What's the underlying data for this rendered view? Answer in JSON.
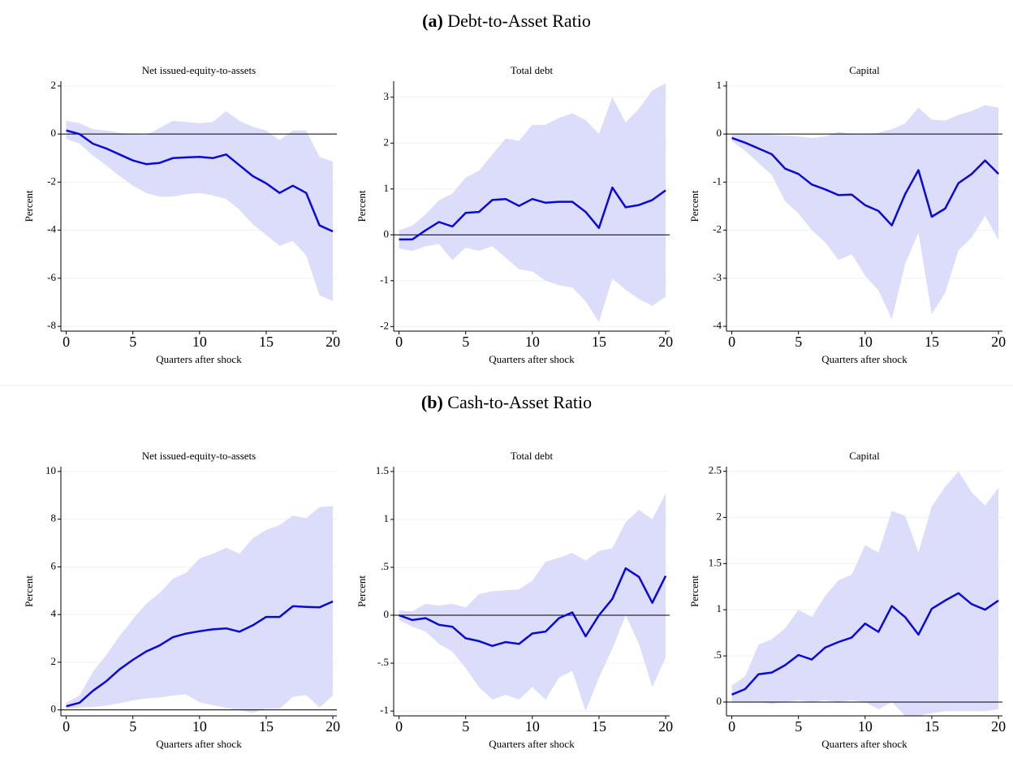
{
  "panels": [
    {
      "label": "(a)",
      "title": "Debt-to-Asset Ratio"
    },
    {
      "label": "(b)",
      "title": "Cash-to-Asset Ratio"
    }
  ],
  "chart_data": [
    {
      "type": "line",
      "title": "Net issued-equity-to-assets",
      "xlabel": "Quarters after shock",
      "ylabel": "Percent",
      "grid": true,
      "reference_line": 0,
      "x": [
        0,
        1,
        2,
        3,
        4,
        5,
        6,
        7,
        8,
        9,
        10,
        11,
        12,
        13,
        14,
        15,
        16,
        17,
        18,
        19,
        20
      ],
      "xlim": [
        -0.4,
        20.3
      ],
      "xticks": [
        0,
        5,
        10,
        15,
        20
      ],
      "ylim": [
        -8.2,
        2.2
      ],
      "yticks": [
        -8,
        -6,
        -4,
        -2,
        0,
        2
      ],
      "series": [
        {
          "color": "#0a0ad8",
          "values": [
            0.15,
            0,
            -0.4,
            -0.6,
            -0.85,
            -1.1,
            -1.25,
            -1.2,
            -1.0,
            -0.97,
            -0.95,
            -1.0,
            -0.85,
            -1.3,
            -1.75,
            -2.05,
            -2.45,
            -2.15,
            -2.45,
            -3.8,
            -4.05
          ]
        }
      ],
      "band": {
        "color": "#dcdcfb",
        "upper": [
          0.55,
          0.45,
          0.2,
          0.15,
          0.05,
          0.0,
          -0.05,
          0.25,
          0.55,
          0.5,
          0.45,
          0.5,
          0.95,
          0.55,
          0.3,
          0.15,
          -0.25,
          0.15,
          0.15,
          -0.95,
          -1.15
        ],
        "lower": [
          -0.2,
          -0.4,
          -0.9,
          -1.3,
          -1.75,
          -2.15,
          -2.45,
          -2.6,
          -2.6,
          -2.5,
          -2.45,
          -2.55,
          -2.7,
          -3.15,
          -3.75,
          -4.2,
          -4.65,
          -4.45,
          -5.05,
          -6.7,
          -6.95
        ]
      }
    },
    {
      "type": "line",
      "title": "Total debt",
      "xlabel": "Quarters after shock",
      "ylabel": "Percent",
      "grid": true,
      "reference_line": 0,
      "x": [
        0,
        1,
        2,
        3,
        4,
        5,
        6,
        7,
        8,
        9,
        10,
        11,
        12,
        13,
        14,
        15,
        16,
        17,
        18,
        19,
        20
      ],
      "xlim": [
        -0.4,
        20.3
      ],
      "xticks": [
        0,
        5,
        10,
        15,
        20
      ],
      "ylim": [
        -2.1,
        3.35
      ],
      "yticks": [
        -2,
        -1,
        0,
        1,
        2,
        3
      ],
      "series": [
        {
          "color": "#0a0ad8",
          "values": [
            -0.1,
            -0.1,
            0.1,
            0.28,
            0.18,
            0.48,
            0.5,
            0.76,
            0.78,
            0.63,
            0.78,
            0.7,
            0.72,
            0.72,
            0.5,
            0.15,
            1.03,
            0.6,
            0.65,
            0.76,
            0.97
          ]
        }
      ],
      "band": {
        "color": "#dcdcfb",
        "upper": [
          0.1,
          0.2,
          0.45,
          0.75,
          0.9,
          1.25,
          1.4,
          1.75,
          2.1,
          2.05,
          2.4,
          2.4,
          2.55,
          2.65,
          2.5,
          2.2,
          3.0,
          2.45,
          2.75,
          3.15,
          3.3
        ],
        "lower": [
          -0.3,
          -0.35,
          -0.25,
          -0.2,
          -0.55,
          -0.28,
          -0.35,
          -0.25,
          -0.5,
          -0.75,
          -0.8,
          -1.0,
          -1.1,
          -1.15,
          -1.45,
          -1.9,
          -0.95,
          -1.2,
          -1.4,
          -1.55,
          -1.35
        ]
      }
    },
    {
      "type": "line",
      "title": "Capital",
      "xlabel": "Quarters after shock",
      "ylabel": "Percent",
      "grid": true,
      "reference_line": 0,
      "x": [
        0,
        1,
        2,
        3,
        4,
        5,
        6,
        7,
        8,
        9,
        10,
        11,
        12,
        13,
        14,
        15,
        16,
        17,
        18,
        19,
        20
      ],
      "xlim": [
        -0.4,
        20.3
      ],
      "xticks": [
        0,
        5,
        10,
        15,
        20
      ],
      "ylim": [
        -4.1,
        1.1
      ],
      "yticks": [
        -4,
        -3,
        -2,
        -1,
        0,
        1
      ],
      "series": [
        {
          "color": "#0a0ad8",
          "values": [
            -0.08,
            -0.18,
            -0.3,
            -0.42,
            -0.72,
            -0.83,
            -1.05,
            -1.15,
            -1.27,
            -1.26,
            -1.48,
            -1.6,
            -1.9,
            -1.25,
            -0.75,
            -1.72,
            -1.55,
            -1.02,
            -0.83,
            -0.55,
            -0.83
          ]
        }
      ],
      "band": {
        "color": "#dcdcfb",
        "upper": [
          0,
          0,
          0,
          -0.02,
          -0.03,
          -0.05,
          -0.08,
          -0.05,
          0.05,
          0.0,
          0.0,
          0.03,
          0.1,
          0.22,
          0.55,
          0.3,
          0.28,
          0.4,
          0.48,
          0.6,
          0.55
        ],
        "lower": [
          -0.15,
          -0.35,
          -0.6,
          -0.85,
          -1.4,
          -1.65,
          -2.0,
          -2.25,
          -2.62,
          -2.5,
          -2.95,
          -3.25,
          -3.85,
          -2.7,
          -2.05,
          -3.75,
          -3.3,
          -2.42,
          -2.15,
          -1.7,
          -2.2
        ]
      }
    },
    {
      "type": "line",
      "title": "Net issued-equity-to-assets",
      "xlabel": "Quarters after shock",
      "ylabel": "Percent",
      "grid": true,
      "reference_line": 0,
      "x": [
        0,
        1,
        2,
        3,
        4,
        5,
        6,
        7,
        8,
        9,
        10,
        11,
        12,
        13,
        14,
        15,
        16,
        17,
        18,
        19,
        20
      ],
      "xlim": [
        -0.4,
        20.3
      ],
      "xticks": [
        0,
        5,
        10,
        15,
        20
      ],
      "ylim": [
        -0.25,
        10.2
      ],
      "yticks": [
        0,
        2,
        4,
        6,
        8,
        10
      ],
      "series": [
        {
          "color": "#0a0ad8",
          "values": [
            0.15,
            0.3,
            0.8,
            1.2,
            1.7,
            2.1,
            2.45,
            2.7,
            3.05,
            3.2,
            3.3,
            3.38,
            3.42,
            3.28,
            3.55,
            3.9,
            3.9,
            4.35,
            4.32,
            4.3,
            4.55
          ]
        }
      ],
      "band": {
        "color": "#dcdcfb",
        "upper": [
          0.3,
          0.6,
          1.6,
          2.3,
          3.1,
          3.8,
          4.45,
          4.9,
          5.5,
          5.75,
          6.35,
          6.55,
          6.8,
          6.55,
          7.2,
          7.55,
          7.75,
          8.15,
          8.05,
          8.5,
          8.55
        ],
        "lower": [
          0.05,
          0.1,
          0.12,
          0.18,
          0.28,
          0.4,
          0.48,
          0.52,
          0.6,
          0.65,
          0.32,
          0.2,
          0.08,
          -0.02,
          -0.12,
          0.05,
          0.05,
          0.55,
          0.62,
          0.1,
          0.6
        ]
      }
    },
    {
      "type": "line",
      "title": "Total debt",
      "xlabel": "Quarters after shock",
      "ylabel": "Percent",
      "grid": true,
      "reference_line": 0,
      "x": [
        0,
        1,
        2,
        3,
        4,
        5,
        6,
        7,
        8,
        9,
        10,
        11,
        12,
        13,
        14,
        15,
        16,
        17,
        18,
        19,
        20
      ],
      "xlim": [
        -0.4,
        20.3
      ],
      "xticks": [
        0,
        5,
        10,
        15,
        20
      ],
      "ylim": [
        -1.05,
        1.55
      ],
      "yticks": [
        -1,
        {
          "value": -0.5,
          "label": "-.5"
        },
        0,
        {
          "value": 0.5,
          "label": ".5"
        },
        1,
        1.5
      ],
      "series": [
        {
          "color": "#0a0ad8",
          "values": [
            0,
            -0.05,
            -0.03,
            -0.1,
            -0.12,
            -0.24,
            -0.27,
            -0.32,
            -0.28,
            -0.3,
            -0.19,
            -0.17,
            -0.03,
            0.03,
            -0.22,
            0,
            0.17,
            0.49,
            0.4,
            0.13,
            0.41
          ]
        }
      ],
      "band": {
        "color": "#dcdcfb",
        "upper": [
          0.05,
          0.04,
          0.12,
          0.1,
          0.12,
          0.08,
          0.22,
          0.25,
          0.26,
          0.27,
          0.36,
          0.56,
          0.6,
          0.65,
          0.57,
          0.67,
          0.7,
          0.97,
          1.1,
          1.0,
          1.27
        ],
        "lower": [
          -0.05,
          -0.12,
          -0.17,
          -0.3,
          -0.38,
          -0.55,
          -0.75,
          -0.88,
          -0.83,
          -0.88,
          -0.75,
          -0.88,
          -0.65,
          -0.58,
          -1.0,
          -0.65,
          -0.35,
          0.0,
          -0.3,
          -0.75,
          -0.44
        ]
      }
    },
    {
      "type": "line",
      "title": "Capital",
      "xlabel": "Quarters after shock",
      "ylabel": "Percent",
      "grid": true,
      "reference_line": 0,
      "x": [
        0,
        1,
        2,
        3,
        4,
        5,
        6,
        7,
        8,
        9,
        10,
        11,
        12,
        13,
        14,
        15,
        16,
        17,
        18,
        19,
        20
      ],
      "xlim": [
        -0.4,
        20.3
      ],
      "xticks": [
        0,
        5,
        10,
        15,
        20
      ],
      "ylim": [
        -0.15,
        2.55
      ],
      "yticks": [
        0,
        {
          "value": 0.5,
          "label": ".5"
        },
        1,
        1.5,
        2,
        2.5
      ],
      "series": [
        {
          "color": "#0a0ad8",
          "values": [
            0.08,
            0.14,
            0.3,
            0.32,
            0.4,
            0.51,
            0.46,
            0.59,
            0.65,
            0.7,
            0.85,
            0.76,
            1.04,
            0.92,
            0.73,
            1.01,
            1.1,
            1.18,
            1.06,
            1.0,
            1.1
          ]
        }
      ],
      "band": {
        "color": "#dcdcfb",
        "upper": [
          0.18,
          0.28,
          0.62,
          0.68,
          0.8,
          1.0,
          0.92,
          1.15,
          1.32,
          1.38,
          1.7,
          1.62,
          2.07,
          2.02,
          1.62,
          2.12,
          2.33,
          2.5,
          2.27,
          2.13,
          2.32
        ],
        "lower": [
          0,
          0,
          0,
          -0.02,
          0,
          0.02,
          0.0,
          0.02,
          0.0,
          0.02,
          0.0,
          -0.08,
          0.0,
          -0.15,
          -0.15,
          -0.12,
          -0.1,
          -0.1,
          -0.1,
          -0.1,
          -0.08
        ]
      }
    }
  ]
}
